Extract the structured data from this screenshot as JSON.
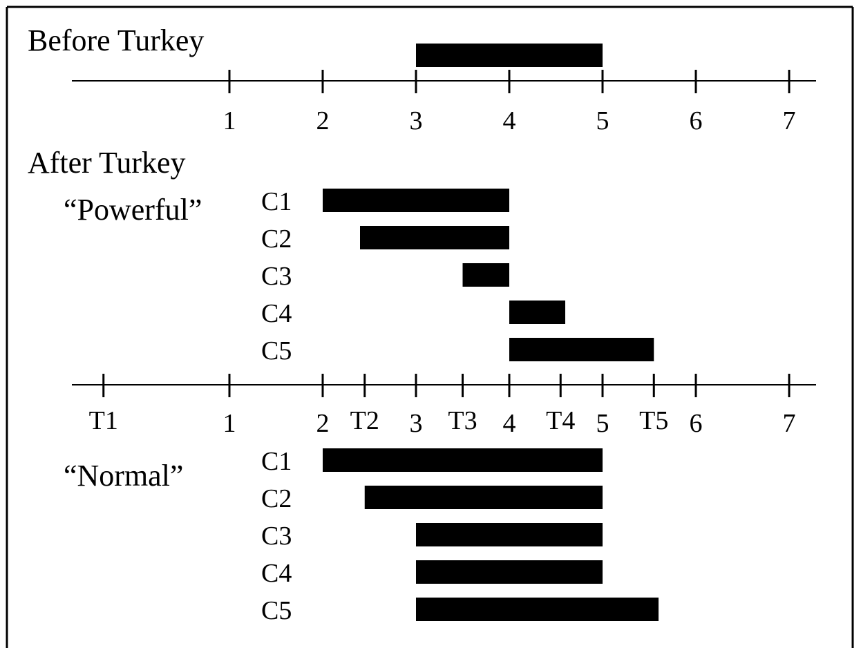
{
  "sections": {
    "before": {
      "title": "Before Turkey",
      "interval": [
        3,
        5
      ],
      "axis_ticks": [
        "1",
        "2",
        "3",
        "4",
        "5",
        "6",
        "7"
      ]
    },
    "after": {
      "title": "After Turkey",
      "axis_ticks": [
        "T1",
        "1",
        "2",
        "T2",
        "3",
        "T3",
        "4",
        "T4",
        "5",
        "T5",
        "6",
        "7"
      ],
      "axis_tick_values": [
        -0.35,
        1,
        2,
        2.45,
        3,
        3.5,
        4,
        4.55,
        5,
        5.55,
        6,
        7
      ],
      "powerful": {
        "label": "“Powerful”",
        "rows": [
          {
            "label": "C1",
            "start": 2.0,
            "end": 4.0
          },
          {
            "label": "C2",
            "start": 2.4,
            "end": 4.0
          },
          {
            "label": "C3",
            "start": 3.5,
            "end": 4.0
          },
          {
            "label": "C4",
            "start": 4.0,
            "end": 4.6
          },
          {
            "label": "C5",
            "start": 4.0,
            "end": 5.55
          }
        ]
      },
      "normal": {
        "label": "“Normal”",
        "rows": [
          {
            "label": "C1",
            "start": 2.0,
            "end": 5.0
          },
          {
            "label": "C2",
            "start": 2.45,
            "end": 5.0
          },
          {
            "label": "C3",
            "start": 3.0,
            "end": 5.0
          },
          {
            "label": "C4",
            "start": 3.0,
            "end": 5.0
          },
          {
            "label": "C5",
            "start": 3.0,
            "end": 5.6
          }
        ]
      }
    }
  }
}
